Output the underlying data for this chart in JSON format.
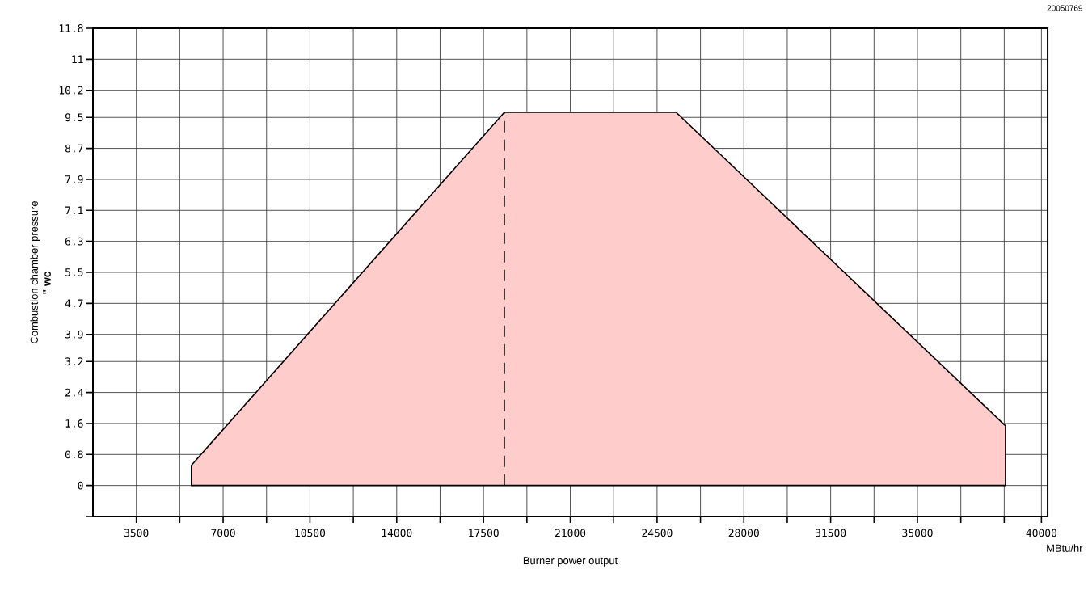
{
  "chart_data": {
    "type": "area",
    "xlabel": "Burner power output",
    "ylabel": "Combustion chamber pressure",
    "annotations": [
      "\" wc",
      "MBtu/hr",
      "20050769"
    ],
    "series": [
      {
        "color": "#ffcccc",
        "x": [
          5720,
          5720,
          18340,
          25270,
          38550,
          38550
        ],
        "values": [
          0,
          0.52,
          9.63,
          9.63,
          1.54,
          0
        ]
      },
      {
        "type": "line",
        "color": "#000000",
        "line_style": "dashed",
        "x": [
          18340,
          18340
        ],
        "values": [
          0,
          9.63
        ]
      }
    ],
    "xlim": [
      1750,
      40250
    ],
    "xticks": [
      3500,
      {
        "value": 5250,
        "label": null
      },
      7000,
      {
        "value": 8750,
        "label": null
      },
      10500,
      {
        "value": 12250,
        "label": null
      },
      14000,
      {
        "value": 15750,
        "label": null
      },
      17500,
      {
        "value": 19250,
        "label": null
      },
      21000,
      {
        "value": 22750,
        "label": null
      },
      24500,
      {
        "value": 26250,
        "label": null
      },
      28000,
      {
        "value": 29750,
        "label": null
      },
      31500,
      {
        "value": 33250,
        "label": null
      },
      35000,
      {
        "value": 36750,
        "label": null
      },
      {
        "value": 38500,
        "label": null
      },
      40000
    ],
    "ylim": [
      -0.8,
      11.8
    ],
    "yticks": [
      {
        "value": -0.8,
        "label": null
      },
      0,
      0.8,
      1.6,
      2.4,
      3.2,
      3.9,
      4.7,
      5.5,
      6.3,
      7.1,
      7.9,
      8.7,
      9.5,
      10.2,
      11,
      11.8
    ],
    "grid": true
  }
}
